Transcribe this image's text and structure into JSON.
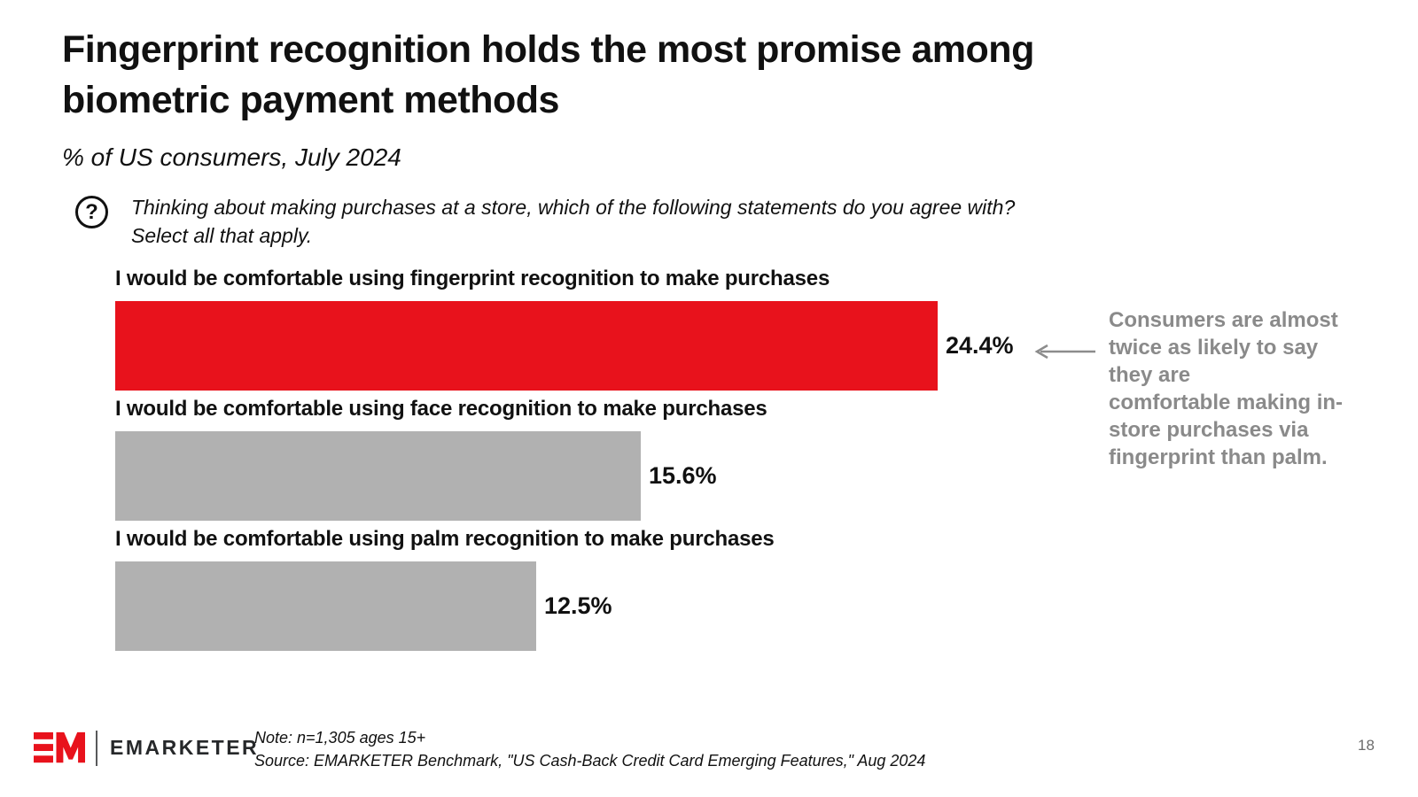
{
  "header": {
    "title": "Fingerprint recognition holds the most promise among\nbiometric payment methods",
    "subtitle": "% of US consumers, July 2024"
  },
  "question": {
    "icon": "question-mark-circle-icon",
    "icon_glyph": "?",
    "text": "Thinking about making purchases at a store, which of the following statements do you agree with?\nSelect all that apply."
  },
  "chart_data": {
    "type": "bar",
    "orientation": "horizontal",
    "unit": "%",
    "categories": [
      "I would be comfortable using fingerprint recognition to make purchases",
      "I would be comfortable using face recognition to make purchases",
      "I would be comfortable using palm recognition to make purchases"
    ],
    "values": [
      24.4,
      15.6,
      12.5
    ],
    "value_labels": [
      "24.4%",
      "15.6%",
      "12.5%"
    ],
    "bar_colors": [
      "#E8121C",
      "#B1B1B1",
      "#B1B1B1"
    ],
    "bar_keys": [
      "fingerprint",
      "face",
      "palm"
    ],
    "highlight_color": "#E8121C",
    "muted_color": "#B1B1B1",
    "xlim": [
      0,
      24.4
    ],
    "grid": false,
    "legend": false,
    "value_label_position": "outside-right"
  },
  "annotation": {
    "text": "Consumers are almost\ntwice as likely to say\nthey are\ncomfortable making in-\nstore purchases via\nfingerprint than palm.",
    "color": "#8A8A8A",
    "arrow_icon": "left-arrow-icon",
    "arrow_color": "#8C8C8C"
  },
  "footer": {
    "logo": {
      "monogram": "EM",
      "wordmark": "EMARKETER",
      "color": "#E8121C"
    },
    "note": "Note: n=1,305 ages 15+",
    "source": "Source: EMARKETER Benchmark, \"US Cash-Back Credit Card Emerging Features,\" Aug 2024",
    "page_number": "18"
  }
}
